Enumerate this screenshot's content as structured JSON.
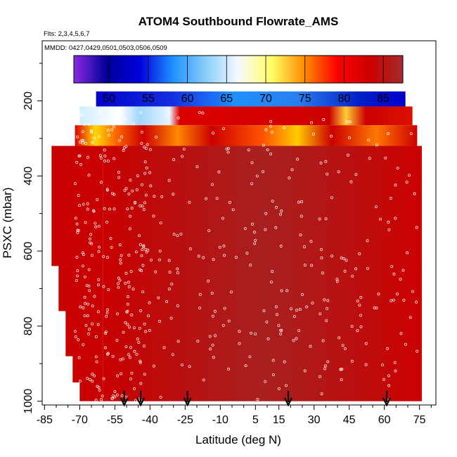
{
  "chart_data": {
    "type": "heatmap",
    "title": "ATOM4 Southbound Flowrate_AMS",
    "subtitle_flights": "Flts: 2,3,4,5,6,7",
    "subtitle_dates": "MMDD: 0427,0429,0501,0503,0506,0509",
    "xlabel": "Latitude (deg N)",
    "ylabel": "PSXC (mbar)",
    "xlim": [
      -86,
      82
    ],
    "ylim": [
      1010,
      40
    ],
    "x_ticks": [
      -85,
      -70,
      -55,
      -40,
      -25,
      -10,
      5,
      15,
      30,
      45,
      60,
      75
    ],
    "x_tick_labels": [
      "-85",
      "-70",
      "-55",
      "-40",
      "-25",
      "-10",
      "5",
      "15",
      "30",
      "45",
      "60",
      "75"
    ],
    "y_ticks": [
      200,
      400,
      600,
      800,
      1000
    ],
    "y_tick_labels": [
      "200",
      "400",
      "600",
      "800",
      "1000"
    ],
    "colorbar": {
      "min": 45.5,
      "max": 87.5,
      "ticks": [
        50,
        55,
        60,
        65,
        70,
        75,
        80,
        85
      ],
      "tick_labels": [
        "50",
        "55",
        "60",
        "65",
        "70",
        "75",
        "80",
        "85"
      ],
      "colors": [
        "#8a2be2",
        "#000099",
        "#0000dd",
        "#1e90ff",
        "#87cefa",
        "#f8f8ff",
        "#ffff66",
        "#ff8c00",
        "#ff0000",
        "#cc0000",
        "#a52a2a"
      ]
    },
    "bands": [
      {
        "p_top": 175,
        "p_bottom": 215,
        "lat_min": -63,
        "lat_max": 69,
        "value": 55
      },
      {
        "p_top": 215,
        "p_bottom": 265,
        "lat_min": -70,
        "lat_max": 72,
        "value": 78
      },
      {
        "p_top": 265,
        "p_bottom": 320,
        "lat_min": -72,
        "lat_max": 74,
        "value": 82
      },
      {
        "p_top": 320,
        "p_bottom": 1000,
        "lat_min": -60,
        "lat_max": 76,
        "value": 85
      }
    ],
    "arrows_lat": [
      -51,
      -44,
      -24,
      19,
      61
    ]
  }
}
